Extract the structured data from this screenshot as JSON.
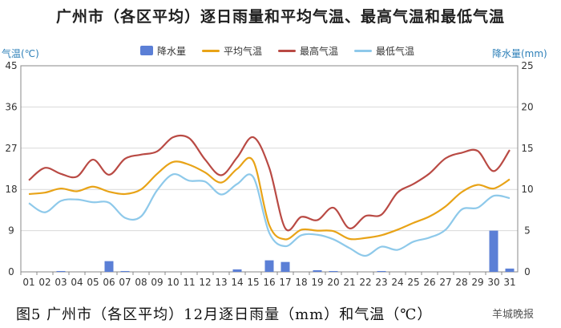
{
  "title": "广州市（各区平均）逐日雨量和平均气温、最高气温和最低气温",
  "caption": "图5  广州市（各区平均）12月逐日雨量（mm）和气温（℃）",
  "watermark": "羊城晚报",
  "legend": [
    {
      "label": "降水量",
      "kind": "bar",
      "color": "#5b7fd6"
    },
    {
      "label": "平均气温",
      "kind": "line",
      "color": "#e8a317"
    },
    {
      "label": "最高气温",
      "kind": "line",
      "color": "#b94a44"
    },
    {
      "label": "最低气温",
      "kind": "line",
      "color": "#8ec9ea"
    }
  ],
  "chart_data": {
    "type": "bar+line",
    "categories": [
      "01",
      "02",
      "03",
      "04",
      "05",
      "06",
      "07",
      "08",
      "09",
      "10",
      "11",
      "12",
      "13",
      "14",
      "15",
      "16",
      "17",
      "18",
      "19",
      "20",
      "21",
      "22",
      "23",
      "24",
      "25",
      "26",
      "27",
      "28",
      "29",
      "30",
      "31"
    ],
    "left_axis": {
      "label": "气温(℃)",
      "range": [
        0,
        45
      ],
      "ticks": [
        0,
        9,
        18,
        27,
        36,
        45
      ]
    },
    "right_axis": {
      "label": "降水量(mm)",
      "range": [
        0,
        25
      ],
      "ticks": [
        0,
        5,
        10,
        15,
        20,
        25
      ]
    },
    "grid": true,
    "legend_position": "top",
    "bars": {
      "name": "降水量",
      "axis": "right",
      "color": "#5b7fd6",
      "values": [
        0,
        0,
        0.1,
        0,
        0,
        1.3,
        0.1,
        0,
        0,
        0,
        0,
        0,
        0,
        0.3,
        0,
        1.4,
        1.2,
        0,
        0.2,
        0.1,
        0,
        0,
        0.1,
        0,
        0,
        0,
        0,
        0,
        0,
        5.0,
        0.4
      ]
    },
    "series": [
      {
        "name": "平均气温",
        "axis": "left",
        "color": "#e8a317",
        "values": [
          17.0,
          17.3,
          18.2,
          17.6,
          18.6,
          17.5,
          17.0,
          18.0,
          21.4,
          24.0,
          23.4,
          21.7,
          19.5,
          22.5,
          24.2,
          10.2,
          7.1,
          9.2,
          9.0,
          8.9,
          7.2,
          7.4,
          8.0,
          9.2,
          10.7,
          12.1,
          14.3,
          17.4,
          19.0,
          18.2,
          20.2
        ]
      },
      {
        "name": "最高气温",
        "axis": "left",
        "color": "#b94a44",
        "values": [
          20.0,
          22.7,
          21.4,
          20.8,
          24.5,
          21.2,
          24.7,
          25.6,
          26.3,
          29.4,
          29.2,
          24.5,
          21.1,
          25.0,
          29.4,
          22.7,
          9.5,
          12.0,
          11.3,
          14.0,
          9.5,
          12.2,
          12.5,
          17.3,
          19.2,
          21.5,
          24.8,
          26.0,
          26.4,
          22.0,
          26.6
        ]
      },
      {
        "name": "最低气温",
        "axis": "left",
        "color": "#8ec9ea",
        "values": [
          15.0,
          13.0,
          15.5,
          15.8,
          15.2,
          15.1,
          11.8,
          12.1,
          17.8,
          21.3,
          19.9,
          19.7,
          16.9,
          19.2,
          20.7,
          8.5,
          5.6,
          8.0,
          8.1,
          7.1,
          5.2,
          3.5,
          5.5,
          4.8,
          6.6,
          7.5,
          9.2,
          13.6,
          14.0,
          16.6,
          16.1
        ]
      }
    ]
  }
}
